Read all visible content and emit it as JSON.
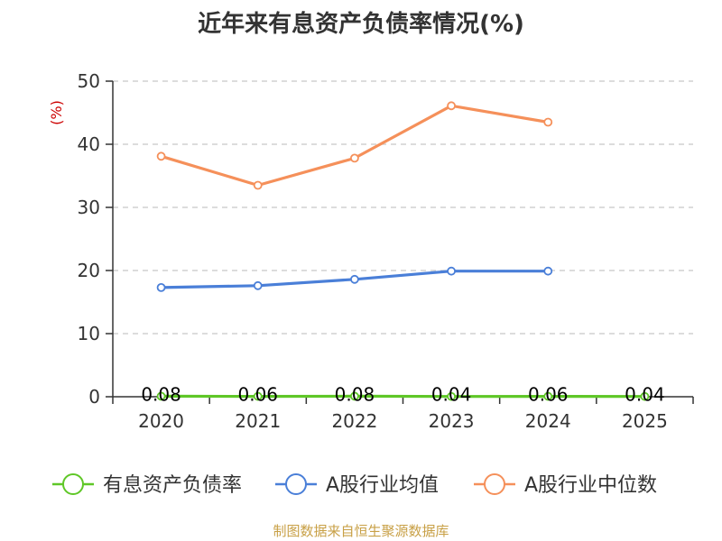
{
  "title": "近年来有息资产负债率情况(%)",
  "source": "制图数据来自恒生聚源数据库",
  "chart_data": {
    "type": "line",
    "title": "近年来有息资产负债率情况(%)",
    "ylabel": "(%)",
    "ylabel_color": "#cc0000",
    "categories": [
      "2020",
      "2021",
      "2022",
      "2023",
      "2024",
      "2025"
    ],
    "ylim": [
      0,
      50
    ],
    "yticks": [
      0,
      10,
      20,
      30,
      40,
      50
    ],
    "grid": true,
    "legend_position": "bottom",
    "series": [
      {
        "name": "有息资产负债率",
        "color": "#5fc727",
        "values": [
          0.08,
          0.06,
          0.08,
          0.04,
          0.06,
          0.04
        ],
        "labels": [
          "0.08",
          "0.06",
          "0.08",
          "0.04",
          "0.06",
          "0.04"
        ]
      },
      {
        "name": "A股行业均值",
        "color": "#4a7fd8",
        "values": [
          17.3,
          17.6,
          18.6,
          19.9,
          19.9,
          null
        ]
      },
      {
        "name": "A股行业中位数",
        "color": "#f5905a",
        "values": [
          38.1,
          33.5,
          37.8,
          46.1,
          43.5,
          null
        ]
      }
    ]
  }
}
